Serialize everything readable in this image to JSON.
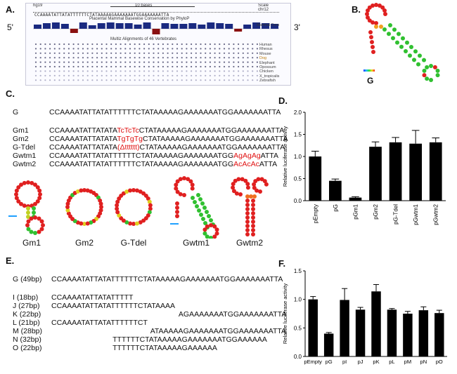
{
  "panelA": {
    "label": "A.",
    "five_prime": "5'",
    "three_prime": "3'",
    "assembly": "hg19",
    "scale_text": "10 bases",
    "scale_label": "Scale",
    "chrom": "chr12",
    "conservation_title": "Placental Mammal Basewise Conservation by PhyloP",
    "alignment_title": "Multiz Alignments of 46 Vertebrates",
    "cons_label": "Mammal Cons",
    "species": [
      "Human",
      "Rhesus",
      "Mouse",
      "Dog",
      "Elephant",
      "Opossum",
      "Chicken",
      "X_tropicalis",
      "Zebrafish"
    ]
  },
  "panelB": {
    "label": "B.",
    "structure_label": "G"
  },
  "panelC": {
    "label": "C.",
    "rows": [
      {
        "name": "G",
        "pre": "CCAAAATATTATATTTTTTCTATAAAAAGAAAAAAATGGAAAAAAATTA",
        "mut": "",
        "post": ""
      },
      {
        "name": "Gm1",
        "pre": "CCAAAATATTATATA",
        "mut": "TcTcTc",
        "post": "CTATAAAAAGAAAAAAATGGAAAAAAATTA"
      },
      {
        "name": "Gm2",
        "pre": "CCAAAATATTATATA",
        "mut": "TgTgTg",
        "post": "CTATAAAAAGAAAAAAATGGAAAAAAATTA"
      },
      {
        "name": "G-Tdel",
        "pre": "CCAAAATATTATATA",
        "mut": "(Δtttttt)",
        "post": "CTATAAAAAGAAAAAAATGGAAAAAAATTA"
      },
      {
        "name": "Gwtm1",
        "pre": "CCAAAATATTATATTTTTTCTATAAAAAGAAAAAAATGG",
        "mut": "AgAgAg",
        "post": "ATTA"
      },
      {
        "name": "Gwtm2",
        "pre": "CCAAAATATTATATTTTTTCTATAAAAAGAAAAAAATGG",
        "mut": "AcAcAc",
        "post": "ATTA"
      }
    ],
    "structures": [
      "Gm1",
      "Gm2",
      "G-Tdel",
      "Gwtm1",
      "Gwtm2"
    ]
  },
  "panelE": {
    "label": "E.",
    "rows": [
      {
        "name": "G (49bp)",
        "seq": "CCAAAATATTATATTTTTTCTATAAAAAGAAAAAAATGGAAAAAAATTA",
        "offset": 0
      },
      {
        "name": "I (18bp)",
        "seq": "CCAAAATATTATATTTTT",
        "offset": 0
      },
      {
        "name": "J (27bp)",
        "seq": "CCAAAATATTATATTTTTTCTATAAAA",
        "offset": 0
      },
      {
        "name": "K (22bp)",
        "seq": "AGAAAAAAATGGAAAAAAATTA",
        "offset": 27
      },
      {
        "name": "L (21bp)",
        "seq": "CCAAAATATTATATTTTTTCT",
        "offset": 0
      },
      {
        "name": "M (28bp)",
        "seq": "ATAAAAAGAAAAAAATGGAAAAAAATTA",
        "offset": 21
      },
      {
        "name": "N (32bp)",
        "seq": "TTTTTTCTATAAAAAGAAAAAAATGGAAAAAA",
        "offset": 13
      },
      {
        "name": "O (22bp)",
        "seq": "TTTTTTCTATAAAAAGAAAAAA",
        "offset": 13
      }
    ]
  },
  "chart_data": [
    {
      "panel": "D.",
      "type": "bar",
      "categories": [
        "pEmpty",
        "pG",
        "pGm1",
        "pGm2",
        "pG-Tdel",
        "pGwtm1",
        "pGwtm2"
      ],
      "values": [
        1.0,
        0.45,
        0.07,
        1.22,
        1.32,
        1.29,
        1.32
      ],
      "errors": [
        0.12,
        0.04,
        0.02,
        0.11,
        0.11,
        0.3,
        0.1
      ],
      "ylabel": "Relative luciferase activity",
      "xlabel": "",
      "ylim": [
        0,
        2.0
      ],
      "yticks": [
        0.0,
        0.5,
        1.0,
        1.5,
        2.0
      ],
      "ytick_labels": [
        "0.0",
        "0.5",
        "1.0",
        "1.5",
        "2.0"
      ],
      "color": "#000000"
    },
    {
      "panel": "F.",
      "type": "bar",
      "categories": [
        "pEmpty",
        "pG",
        "pI",
        "pJ",
        "pK",
        "pL",
        "pM",
        "pN",
        "pO"
      ],
      "values": [
        1.0,
        0.4,
        0.99,
        0.82,
        1.14,
        0.82,
        0.75,
        0.81,
        0.76
      ],
      "errors": [
        0.05,
        0.02,
        0.2,
        0.04,
        0.12,
        0.02,
        0.04,
        0.06,
        0.05
      ],
      "ylabel": "Relative luciferase activity",
      "xlabel": "",
      "ylim": [
        0,
        1.5
      ],
      "yticks": [
        0.0,
        0.5,
        1.0,
        1.5
      ],
      "ytick_labels": [
        "0.0",
        "0.5",
        "1.0",
        "1.5"
      ],
      "color": "#000000"
    }
  ]
}
